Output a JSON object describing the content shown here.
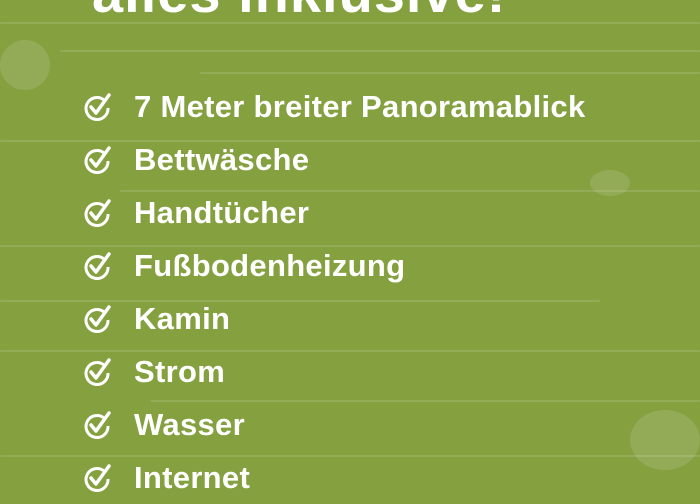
{
  "title": "alles inklusive!",
  "items": [
    {
      "label": "7 Meter breiter Panoramablick",
      "icon": "check-circle-icon"
    },
    {
      "label": "Bettwäsche",
      "icon": "check-circle-icon"
    },
    {
      "label": "Handtücher",
      "icon": "check-circle-icon"
    },
    {
      "label": "Fußbodenheizung",
      "icon": "check-circle-icon"
    },
    {
      "label": "Kamin",
      "icon": "check-circle-icon"
    },
    {
      "label": "Strom",
      "icon": "check-circle-icon"
    },
    {
      "label": "Wasser",
      "icon": "check-circle-icon"
    },
    {
      "label": "Internet",
      "icon": "check-circle-icon"
    }
  ],
  "colors": {
    "background": "#84a03f",
    "text": "#ffffff"
  }
}
